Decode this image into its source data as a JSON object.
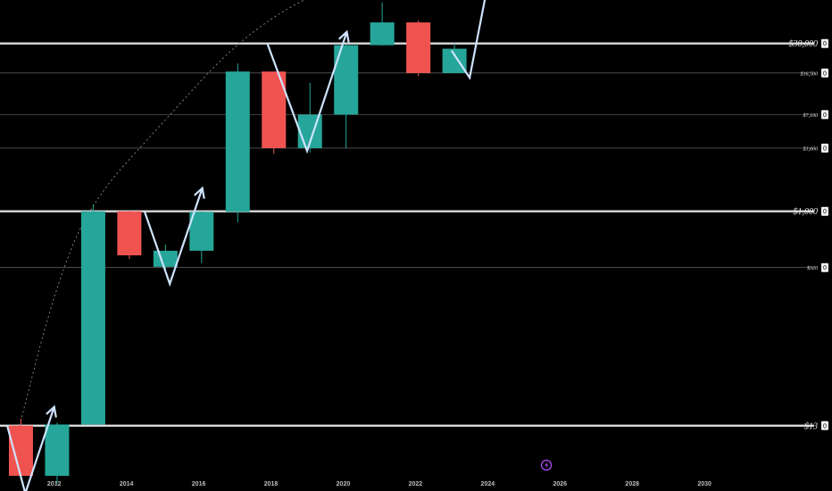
{
  "chart_data": {
    "type": "candlestick",
    "scale": "log",
    "colors": {
      "up": "#26a69a",
      "down": "#ef5350",
      "background": "#000000",
      "arrow": "#cfe3ff",
      "major_line": "#d9d9d9",
      "minor_line": "#7a7a7a"
    },
    "x_ticks": [
      "2012",
      "2014",
      "2016",
      "2018",
      "2020",
      "2022",
      "2024",
      "2026",
      "2028",
      "2030"
    ],
    "x_range": [
      2010.5,
      2031.8
    ],
    "y_range_log10": [
      0.68,
      4.86
    ],
    "price_levels": [
      {
        "label": "$30,000",
        "value": 30000,
        "major": true
      },
      {
        "label": "$16,500",
        "value": 16500,
        "major": false
      },
      {
        "label": "$7,100",
        "value": 7100,
        "major": false
      },
      {
        "label": "$3,600",
        "value": 3600,
        "major": false
      },
      {
        "label": "$1,000",
        "value": 1000,
        "major": true
      },
      {
        "label": "$320",
        "value": 320,
        "major": false
      },
      {
        "label": "$13",
        "value": 13,
        "major": true
      }
    ],
    "tag_value": "0",
    "candles": [
      {
        "t": 2011.08,
        "open": 13,
        "close": 4.7,
        "high": 15,
        "low": 4.6
      },
      {
        "t": 2012.08,
        "open": 4.7,
        "close": 13.3,
        "high": 13.8,
        "low": 4.0
      },
      {
        "t": 2013.08,
        "open": 13.3,
        "close": 1000,
        "high": 1150,
        "low": 13.3
      },
      {
        "t": 2014.08,
        "open": 1000,
        "close": 410,
        "high": 1010,
        "low": 380
      },
      {
        "t": 2015.08,
        "open": 325,
        "close": 450,
        "high": 510,
        "low": 290
      },
      {
        "t": 2016.08,
        "open": 450,
        "close": 990,
        "high": 1000,
        "low": 350
      },
      {
        "t": 2017.08,
        "open": 990,
        "close": 17000,
        "high": 20000,
        "low": 800
      },
      {
        "t": 2018.08,
        "open": 17000,
        "close": 3600,
        "high": 17000,
        "low": 3200
      },
      {
        "t": 2019.08,
        "open": 3600,
        "close": 7100,
        "high": 13500,
        "low": 3300
      },
      {
        "t": 2020.08,
        "open": 7100,
        "close": 29000,
        "high": 29500,
        "low": 3600
      },
      {
        "t": 2021.08,
        "open": 29000,
        "close": 46000,
        "high": 69000,
        "low": 28800
      },
      {
        "t": 2022.08,
        "open": 46000,
        "close": 16500,
        "high": 48000,
        "low": 15500
      },
      {
        "t": 2023.08,
        "open": 16500,
        "close": 27000,
        "high": 30000,
        "low": 16400
      }
    ],
    "arrows": [
      {
        "points": [
          [
            2010.7,
            13
          ],
          [
            2011.2,
            3.3
          ],
          [
            2012.0,
            19
          ]
        ]
      },
      {
        "points": [
          [
            2014.5,
            1000
          ],
          [
            2015.2,
            230
          ],
          [
            2016.1,
            1600
          ]
        ]
      },
      {
        "points": [
          [
            2017.9,
            30000
          ],
          [
            2019.0,
            3400
          ],
          [
            2020.1,
            38000
          ]
        ]
      },
      {
        "points": [
          [
            2023.0,
            26000
          ],
          [
            2023.5,
            15000
          ],
          [
            2024.2,
            210000
          ]
        ]
      }
    ],
    "curve": [
      [
        2010.95,
        10
      ],
      [
        2012.0,
        200
      ],
      [
        2013.0,
        1200
      ],
      [
        2015.0,
        6000
      ],
      [
        2017.0,
        30000
      ],
      [
        2019.0,
        80000
      ],
      [
        2021.0,
        120000
      ],
      [
        2023.3,
        150000
      ]
    ],
    "icon": "lightning-icon"
  }
}
